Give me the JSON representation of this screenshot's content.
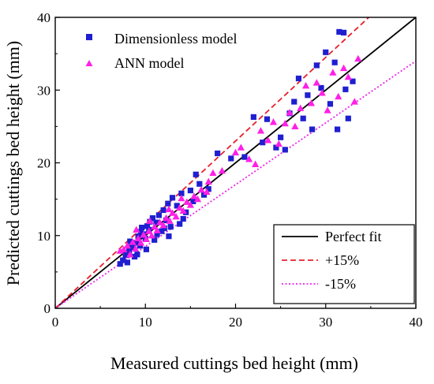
{
  "chart_data": {
    "type": "scatter",
    "xlabel": "Measured cuttings bed height (mm)",
    "ylabel": "Predicted cuttings bed height (mm)",
    "xlim": [
      0,
      40
    ],
    "ylim": [
      0,
      40
    ],
    "xticks": [
      "0",
      "10",
      "20",
      "30",
      "40"
    ],
    "yticks": [
      "0",
      "10",
      "20",
      "30",
      "40"
    ],
    "grid": false,
    "legend_top_left": [
      "Dimensionless model",
      "ANN model"
    ],
    "legend_bottom_right": [
      "Perfect fit",
      "+15%",
      "-15%"
    ],
    "colors": {
      "dimensionless": "#1f1fd0",
      "ann": "#ff1fe6",
      "perfect": "#000000",
      "plus15": "#e8202a",
      "minus15": "#ee22ee"
    },
    "lines": [
      {
        "name": "Perfect fit",
        "slope": 1.0,
        "style": "solid"
      },
      {
        "name": "+15%",
        "slope": 1.15,
        "style": "dashed"
      },
      {
        "name": "-15%",
        "slope": 0.85,
        "style": "dotted"
      }
    ],
    "series": [
      {
        "name": "Dimensionless model",
        "marker": "square",
        "points": [
          [
            7.2,
            6.1
          ],
          [
            7.5,
            6.6
          ],
          [
            7.8,
            7.3
          ],
          [
            8.0,
            6.3
          ],
          [
            8.2,
            7.9
          ],
          [
            8.5,
            8.4
          ],
          [
            8.8,
            7.1
          ],
          [
            9.0,
            9.0
          ],
          [
            9.2,
            9.9
          ],
          [
            9.4,
            8.6
          ],
          [
            9.5,
            10.5
          ],
          [
            9.6,
            11.1
          ],
          [
            9.8,
            10.2
          ],
          [
            10.0,
            9.6
          ],
          [
            10.2,
            11.3
          ],
          [
            10.4,
            10.8
          ],
          [
            10.5,
            11.9
          ],
          [
            10.8,
            12.4
          ],
          [
            11.0,
            9.4
          ],
          [
            11.2,
            11.8
          ],
          [
            11.5,
            12.8
          ],
          [
            11.8,
            10.6
          ],
          [
            12.0,
            13.5
          ],
          [
            12.3,
            12.1
          ],
          [
            12.5,
            14.4
          ],
          [
            12.8,
            11.2
          ],
          [
            13.0,
            15.2
          ],
          [
            13.5,
            14.1
          ],
          [
            13.8,
            11.6
          ],
          [
            14.0,
            15.8
          ],
          [
            14.5,
            13.2
          ],
          [
            15.0,
            16.2
          ],
          [
            15.3,
            14.7
          ],
          [
            15.6,
            18.4
          ],
          [
            16.0,
            17.1
          ],
          [
            16.5,
            15.6
          ],
          [
            17.0,
            16.4
          ],
          [
            18.0,
            21.3
          ],
          [
            19.5,
            20.6
          ],
          [
            21.0,
            20.8
          ],
          [
            22.0,
            26.3
          ],
          [
            23.0,
            22.8
          ],
          [
            23.5,
            26.0
          ],
          [
            24.5,
            22.1
          ],
          [
            25.0,
            23.5
          ],
          [
            25.5,
            21.8
          ],
          [
            26.0,
            26.8
          ],
          [
            26.5,
            28.4
          ],
          [
            27.0,
            31.6
          ],
          [
            27.5,
            26.1
          ],
          [
            28.0,
            29.3
          ],
          [
            28.5,
            24.6
          ],
          [
            29.0,
            33.4
          ],
          [
            29.5,
            30.3
          ],
          [
            30.0,
            35.2
          ],
          [
            30.5,
            28.1
          ],
          [
            31.0,
            33.8
          ],
          [
            31.3,
            24.6
          ],
          [
            31.5,
            38.0
          ],
          [
            32.0,
            37.9
          ],
          [
            32.2,
            30.1
          ],
          [
            32.5,
            26.1
          ],
          [
            33.0,
            31.2
          ],
          [
            8.3,
            9.2
          ],
          [
            9.1,
            7.4
          ],
          [
            10.1,
            8.1
          ],
          [
            11.3,
            10.2
          ],
          [
            12.1,
            11.0
          ],
          [
            12.6,
            9.9
          ],
          [
            14.2,
            12.3
          ]
        ]
      },
      {
        "name": "ANN model",
        "marker": "triangle",
        "points": [
          [
            7.2,
            7.9
          ],
          [
            7.6,
            8.1
          ],
          [
            8.0,
            8.6
          ],
          [
            8.3,
            7.4
          ],
          [
            8.6,
            9.1
          ],
          [
            8.9,
            8.2
          ],
          [
            9.2,
            9.6
          ],
          [
            9.5,
            9.0
          ],
          [
            9.8,
            10.1
          ],
          [
            10.1,
            9.5
          ],
          [
            10.4,
            10.6
          ],
          [
            10.7,
            10.0
          ],
          [
            11.0,
            11.2
          ],
          [
            11.3,
            10.7
          ],
          [
            11.6,
            11.8
          ],
          [
            12.0,
            11.4
          ],
          [
            12.3,
            12.4
          ],
          [
            12.7,
            12.0
          ],
          [
            13.0,
            13.1
          ],
          [
            13.4,
            12.6
          ],
          [
            13.8,
            13.8
          ],
          [
            14.2,
            13.4
          ],
          [
            14.6,
            14.6
          ],
          [
            15.0,
            14.2
          ],
          [
            15.4,
            15.4
          ],
          [
            15.8,
            15.0
          ],
          [
            16.2,
            16.3
          ],
          [
            17.0,
            17.4
          ],
          [
            17.5,
            18.6
          ],
          [
            18.5,
            18.9
          ],
          [
            20.0,
            21.4
          ],
          [
            20.6,
            22.1
          ],
          [
            21.5,
            20.5
          ],
          [
            22.2,
            19.8
          ],
          [
            22.8,
            24.4
          ],
          [
            23.6,
            23.1
          ],
          [
            24.2,
            25.6
          ],
          [
            24.8,
            22.6
          ],
          [
            25.5,
            25.4
          ],
          [
            26.0,
            26.9
          ],
          [
            26.6,
            25.0
          ],
          [
            27.2,
            27.5
          ],
          [
            27.8,
            30.6
          ],
          [
            28.4,
            28.2
          ],
          [
            29.0,
            31.0
          ],
          [
            29.6,
            29.6
          ],
          [
            30.2,
            27.2
          ],
          [
            30.8,
            32.4
          ],
          [
            31.4,
            29.1
          ],
          [
            32.0,
            33.0
          ],
          [
            32.5,
            31.8
          ],
          [
            33.2,
            28.4
          ],
          [
            33.6,
            34.3
          ],
          [
            9.0,
            10.8
          ],
          [
            10.5,
            12.0
          ],
          [
            12.6,
            13.6
          ],
          [
            14.0,
            15.1
          ],
          [
            16.8,
            16.0
          ]
        ]
      }
    ]
  }
}
